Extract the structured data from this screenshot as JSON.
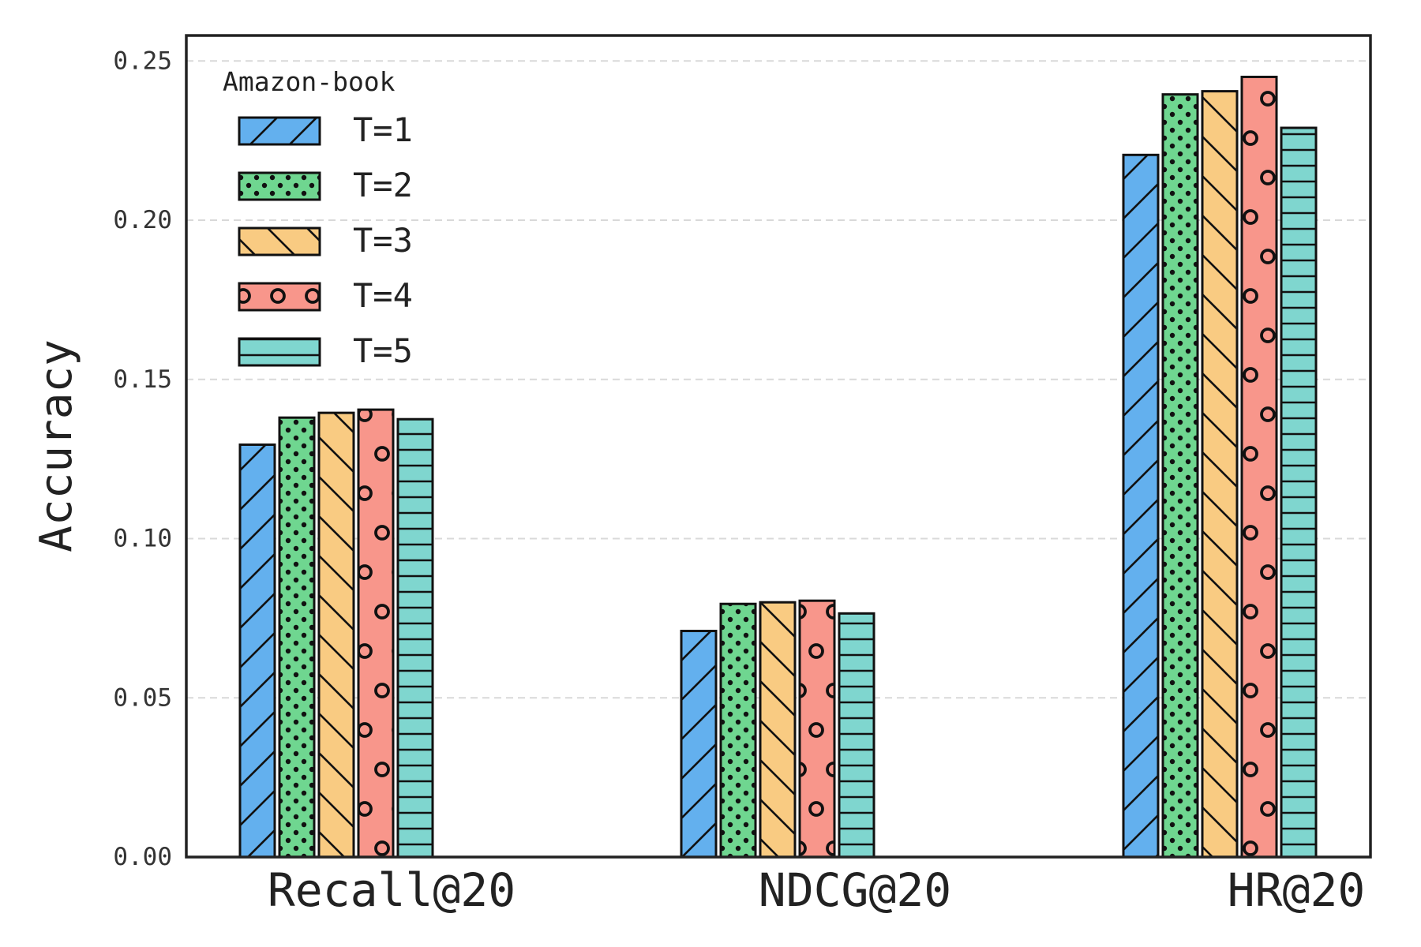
{
  "chart_data": {
    "type": "bar",
    "title": "",
    "xlabel": "",
    "ylabel": "Accuracy",
    "ylim": [
      0,
      0.258
    ],
    "yticks": [
      "0.00",
      "0.05",
      "0.10",
      "0.15",
      "0.20",
      "0.25"
    ],
    "ytick_values": [
      0,
      0.05,
      0.1,
      0.15,
      0.2,
      0.25
    ],
    "categories": [
      "Recall@20",
      "NDCG@20",
      "HR@20"
    ],
    "grid": true,
    "legend": {
      "title": "Amazon-book",
      "placement": "top-left"
    },
    "series": [
      {
        "name": "T=1",
        "color": "#63b0ee",
        "pattern": "diag-forward",
        "values": [
          0.1295,
          0.071,
          0.2205
        ]
      },
      {
        "name": "T=2",
        "color": "#6fd690",
        "pattern": "dots",
        "values": [
          0.138,
          0.0795,
          0.2395
        ]
      },
      {
        "name": "T=3",
        "color": "#f9cb82",
        "pattern": "diag-back",
        "values": [
          0.1395,
          0.08,
          0.2405
        ]
      },
      {
        "name": "T=4",
        "color": "#f8968b",
        "pattern": "circles",
        "values": [
          0.1405,
          0.0805,
          0.245
        ]
      },
      {
        "name": "T=5",
        "color": "#7fd6cf",
        "pattern": "horizontal",
        "values": [
          0.1375,
          0.0765,
          0.229
        ]
      }
    ]
  }
}
